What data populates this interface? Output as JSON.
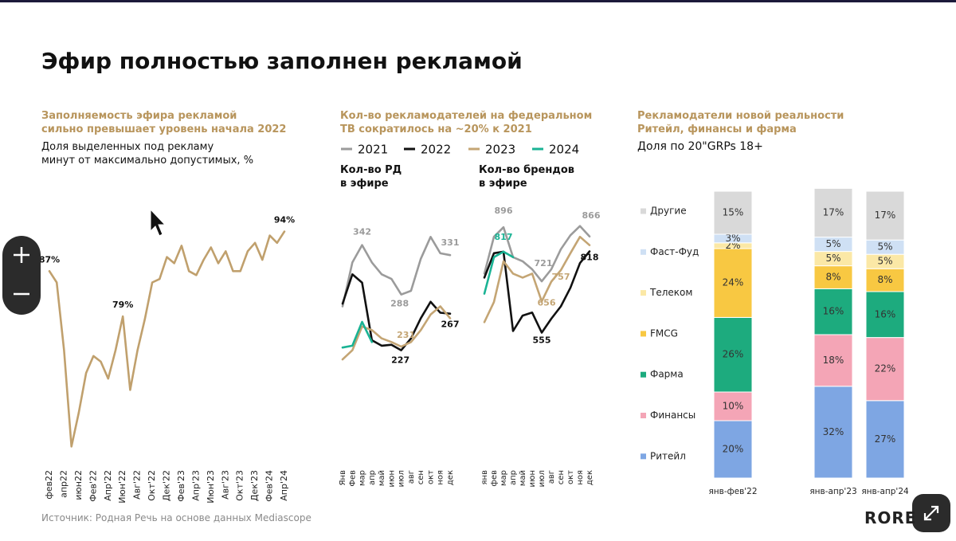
{
  "title": "Эфир полностью заполнен рекламой",
  "source": "Источник: Родная Речь на основе данных Mediascope",
  "logo": "RORE",
  "sections": [
    {
      "title": "Заполняемость эфира рекламой\nсильно превышает уровень начала 2022",
      "subtitle": "Доля выделенных под рекламу\nминут от максимально допустимых, %"
    },
    {
      "title": "Кол-во рекламодателей на федеральном\nТВ сократилось на ~20% к 2021"
    },
    {
      "title": "Рекламодатели новой реальности\nРитейл, финансы и фарма",
      "subtitle": "Доля по 20\"GRPs 18+"
    }
  ],
  "chart_data": [
    {
      "type": "line",
      "color": "#c0a06d",
      "ylim": [
        50,
        100
      ],
      "categories": [
        "фев22",
        null,
        "апр22",
        null,
        "июн22",
        null,
        "Фев'22",
        null,
        "Апр'22",
        null,
        "Июн'22",
        null,
        "Авг'22",
        null,
        "Окт'22",
        null,
        "Дек'22",
        null,
        "Фев'23",
        null,
        "Апр'23",
        null,
        "Июн'23",
        null,
        "Авг'23",
        null,
        "Окт'23",
        null,
        "Дек'23",
        null,
        "Фев'24",
        null,
        "Апр'24"
      ],
      "values": [
        87,
        85,
        73,
        56,
        62,
        69,
        72,
        71,
        68,
        73,
        79,
        66,
        73,
        78.5,
        85,
        85.6,
        89.5,
        88.4,
        91.5,
        87,
        86.3,
        89,
        91.2,
        88.4,
        90.5,
        87,
        87,
        90.5,
        92,
        89,
        93.3,
        92,
        94
      ],
      "value_labels": [
        "87%",
        null,
        null,
        null,
        null,
        null,
        null,
        null,
        null,
        null,
        "79%",
        null,
        null,
        null,
        null,
        null,
        null,
        null,
        null,
        null,
        null,
        null,
        null,
        null,
        null,
        null,
        null,
        null,
        null,
        null,
        null,
        null,
        "94%"
      ]
    },
    {
      "type": "line",
      "title": "Кол-во РД\nв эфире",
      "ylim": [
        150,
        400
      ],
      "categories": [
        "Янв",
        "Фев",
        "мар",
        "апр",
        "май",
        "июн",
        "июл",
        "авг",
        "сен",
        "окт",
        "ноя",
        "дек"
      ],
      "series": [
        {
          "name": "2021",
          "color": "#9b9b9b",
          "values": [
            275,
            323,
            342,
            323,
            310,
            305,
            288,
            292,
            327,
            351,
            333,
            331
          ]
        },
        {
          "name": "2022",
          "color": "#111111",
          "values": [
            278,
            310,
            301,
            238,
            232,
            233,
            227,
            240,
            262,
            280,
            268,
            267
          ]
        },
        {
          "name": "2023",
          "color": "#c4a574",
          "values": [
            217,
            227,
            253,
            249,
            240,
            236,
            231,
            236,
            249,
            266,
            275,
            262
          ]
        },
        {
          "name": "2024",
          "color": "#1ab394",
          "values": [
            230,
            232,
            258,
            236,
            null,
            null,
            null,
            null,
            null,
            null,
            null,
            null
          ]
        }
      ]
    },
    {
      "type": "line",
      "title": "Кол-во брендов\nв эфире",
      "ylim": [
        270,
        1010
      ],
      "categories": [
        "янв",
        "фев",
        "мар",
        "апр",
        "май",
        "июн",
        "июл",
        "авг",
        "сен",
        "окт",
        "ноя",
        "дек"
      ],
      "series": [
        {
          "color": "#9b9b9b",
          "values": [
            746,
            865,
            896,
            799,
            786,
            760,
            721,
            760,
            825,
            870,
            900,
            866
          ]
        },
        {
          "color": "#111111",
          "values": [
            733,
            812,
            817,
            560,
            610,
            620,
            555,
            600,
            640,
            700,
            780,
            818
          ]
        },
        {
          "color": "#c4a574",
          "values": [
            589,
            654,
            786,
            746,
            733,
            746,
            656,
            720,
            757,
            812,
            865,
            838
          ]
        },
        {
          "color": "#1ab394",
          "values": [
            681,
            799,
            817,
            799,
            null,
            null,
            null,
            null,
            null,
            null,
            null,
            null
          ]
        }
      ]
    },
    {
      "type": "bar",
      "stacked": true,
      "ylim": [
        0,
        100
      ],
      "categories": [
        "янв-фев'22",
        "янв-апр'23",
        "янв-апр'24"
      ],
      "series": [
        {
          "name": "Ритейл",
          "color": "#7ea6e3",
          "values": [
            20,
            32,
            27
          ],
          "value_labels": [
            "20%",
            "32%",
            "27%"
          ]
        },
        {
          "name": "Финансы",
          "color": "#f4a5b6",
          "values": [
            10,
            18,
            22
          ],
          "value_labels": [
            "10%",
            "18%",
            "22%"
          ]
        },
        {
          "name": "Фарма",
          "color": "#1dab7e",
          "values": [
            26,
            16,
            16
          ],
          "value_labels": [
            "26%",
            "16%",
            "16%"
          ]
        },
        {
          "name": "FMCG",
          "color": "#f8c842",
          "values": [
            24,
            8,
            8
          ],
          "value_labels": [
            "24%",
            "8%",
            "8%"
          ]
        },
        {
          "name": "Телеком",
          "color": "#fbe8a6",
          "values": [
            2,
            5,
            5
          ],
          "value_labels": [
            "2%",
            "5%",
            "5%"
          ]
        },
        {
          "name": "Фаст-Фуд",
          "color": "#cfe0f4",
          "values": [
            3,
            5,
            5
          ],
          "value_labels": [
            "3%",
            "5%",
            "5%"
          ]
        },
        {
          "name": "Другие",
          "color": "#d9d9d9",
          "values": [
            15,
            17,
            17
          ],
          "value_labels": [
            "15%",
            "17%",
            "17%"
          ]
        }
      ]
    }
  ]
}
